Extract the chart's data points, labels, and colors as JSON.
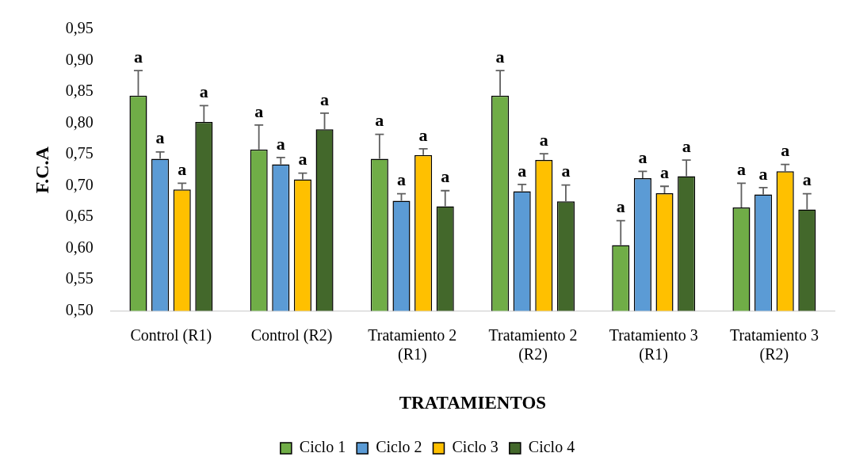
{
  "chart_data": {
    "type": "bar",
    "xlabel": "TRATAMIENTOS",
    "ylabel": "F.C.A",
    "categories": [
      "Control (R1)",
      "Control (R2)",
      "Tratamiento 2 (R1)",
      "Tratamiento 2 (R2)",
      "Tratamiento 3 (R1)",
      "Tratamiento 3 (R2)"
    ],
    "series": [
      {
        "name": "Ciclo 1",
        "color": "#70ad47",
        "values": [
          0.844,
          0.758,
          0.743,
          0.844,
          0.605,
          0.665
        ],
        "errors": [
          [
            0.844,
            0.884
          ],
          [
            0.758,
            0.797
          ],
          [
            0.743,
            0.782
          ],
          [
            0.844,
            0.884
          ],
          [
            0.605,
            0.644
          ],
          [
            0.665,
            0.704
          ]
        ],
        "value_labels": [
          "a",
          "a",
          "a",
          "a",
          "a",
          "a"
        ]
      },
      {
        "name": "Ciclo 2",
        "color": "#5b9bd5",
        "values": [
          0.743,
          0.734,
          0.676,
          0.691,
          0.712,
          0.686
        ],
        "errors": [
          [
            0.743,
            0.754
          ],
          [
            0.734,
            0.745
          ],
          [
            0.676,
            0.687
          ],
          [
            0.691,
            0.702
          ],
          [
            0.712,
            0.723
          ],
          [
            0.686,
            0.697
          ]
        ],
        "value_labels": [
          "a",
          "a",
          "a",
          "a",
          "a",
          "a"
        ]
      },
      {
        "name": "Ciclo 3",
        "color": "#ffc000",
        "values": [
          0.694,
          0.71,
          0.749,
          0.741,
          0.688,
          0.723
        ],
        "errors": [
          [
            0.694,
            0.704
          ],
          [
            0.71,
            0.72
          ],
          [
            0.749,
            0.759
          ],
          [
            0.741,
            0.751
          ],
          [
            0.688,
            0.699
          ],
          [
            0.723,
            0.734
          ]
        ],
        "value_labels": [
          "a",
          "a",
          "a",
          "a",
          "a",
          "a"
        ]
      },
      {
        "name": "Ciclo 4",
        "color": "#43682b",
        "values": [
          0.802,
          0.79,
          0.667,
          0.675,
          0.715,
          0.662
        ],
        "errors": [
          [
            0.802,
            0.828
          ],
          [
            0.79,
            0.816
          ],
          [
            0.667,
            0.692
          ],
          [
            0.675,
            0.701
          ],
          [
            0.715,
            0.741
          ],
          [
            0.662,
            0.687
          ]
        ],
        "value_labels": [
          "a",
          "a",
          "a",
          "a",
          "a",
          "a"
        ]
      }
    ],
    "ylim": [
      0.5,
      0.95
    ],
    "yticks": [
      {
        "value": 0.5,
        "label": "0,50"
      },
      {
        "value": 0.55,
        "label": "0,55"
      },
      {
        "value": 0.6,
        "label": "0,60"
      },
      {
        "value": 0.65,
        "label": "0,65"
      },
      {
        "value": 0.7,
        "label": "0,70"
      },
      {
        "value": 0.75,
        "label": "0,75"
      },
      {
        "value": 0.8,
        "label": "0,80"
      },
      {
        "value": 0.85,
        "label": "0,85"
      },
      {
        "value": 0.9,
        "label": "0,90"
      },
      {
        "value": 0.95,
        "label": "0,95"
      }
    ],
    "legend": "bottom"
  }
}
